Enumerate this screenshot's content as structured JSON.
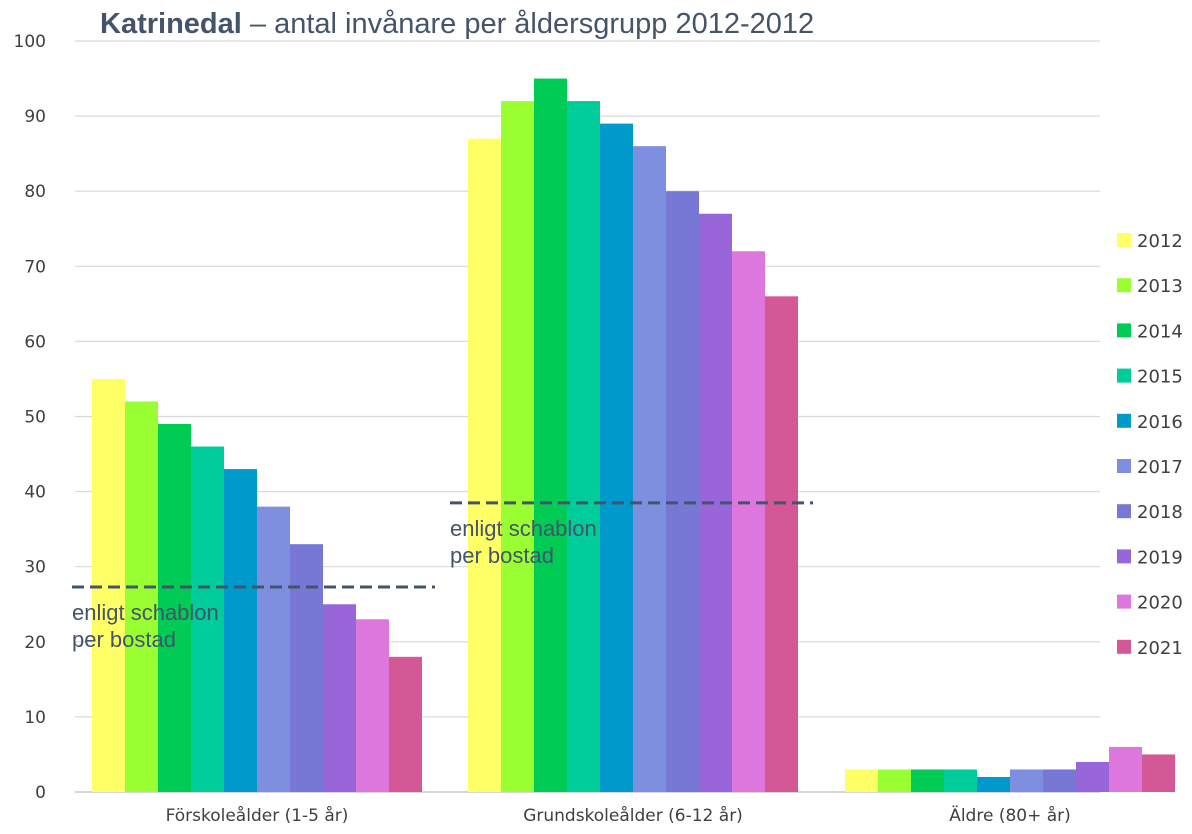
{
  "chart_data": {
    "type": "bar",
    "title_bold": "Katrinedal",
    "title_rest": " – antal invånare per åldersgrupp 2012-2012",
    "categories": [
      "Förskoleålder (1-5 år)",
      "Grundskoleålder (6-12 år)",
      "Äldre (80+ år)"
    ],
    "ylim": [
      0,
      100
    ],
    "yticks": [
      "0",
      "10",
      "20",
      "30",
      "40",
      "50",
      "60",
      "70",
      "80",
      "90",
      "100"
    ],
    "grid": true,
    "legend_position": "right",
    "series": [
      {
        "name": "2012",
        "color": "#ffff66",
        "values": [
          55,
          87,
          3
        ]
      },
      {
        "name": "2013",
        "color": "#99ff33",
        "values": [
          52,
          92,
          3
        ]
      },
      {
        "name": "2014",
        "color": "#00cc55",
        "values": [
          49,
          95,
          3
        ]
      },
      {
        "name": "2015",
        "color": "#00cc99",
        "values": [
          46,
          92,
          3
        ]
      },
      {
        "name": "2016",
        "color": "#0099cc",
        "values": [
          43,
          89,
          2
        ]
      },
      {
        "name": "2017",
        "color": "#7f8fdf",
        "values": [
          38,
          86,
          3
        ]
      },
      {
        "name": "2018",
        "color": "#7777d6",
        "values": [
          33,
          80,
          3
        ]
      },
      {
        "name": "2019",
        "color": "#9966d9",
        "values": [
          25,
          77,
          4
        ]
      },
      {
        "name": "2020",
        "color": "#dd77dd",
        "values": [
          23,
          72,
          6
        ]
      },
      {
        "name": "2021",
        "color": "#d45796",
        "values": [
          18,
          66,
          5
        ]
      }
    ],
    "annotations": [
      {
        "line1": "enligt schablon",
        "line2": "per bostad",
        "category_index": 0,
        "value": 27.3
      },
      {
        "line1": "enligt schablon",
        "line2": "per bostad",
        "category_index": 1,
        "value": 38.5
      }
    ]
  }
}
